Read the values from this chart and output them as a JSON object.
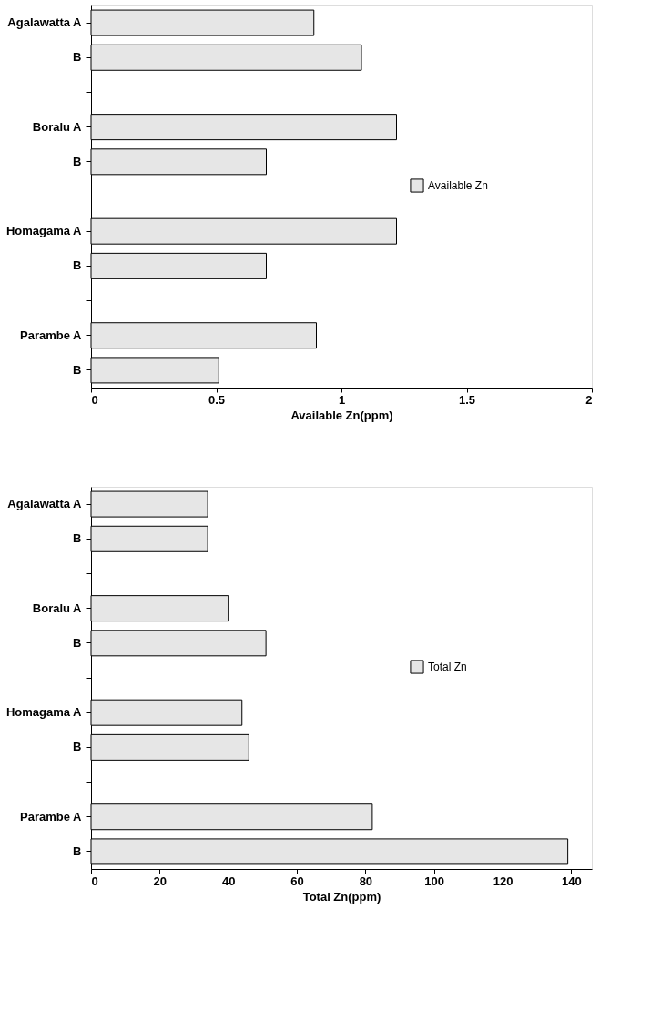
{
  "chart_data": [
    {
      "type": "bar",
      "orientation": "horizontal",
      "xlabel": "Available Zn(ppm)",
      "categories": [
        "Agalawatta A",
        "B",
        null,
        "Boralu A",
        "B",
        null,
        "Homagama A",
        "B",
        null,
        "Parambe A",
        "B"
      ],
      "series": [
        {
          "name": "Available Zn",
          "color": "#e6e6e6",
          "values": [
            0.89,
            1.08,
            null,
            1.22,
            0.7,
            null,
            1.22,
            0.7,
            null,
            0.9,
            0.51
          ]
        }
      ],
      "xlim": [
        0,
        2
      ],
      "xticks": [
        0,
        0.5,
        1,
        1.5,
        2
      ],
      "grid": false,
      "legend": "right"
    },
    {
      "type": "bar",
      "orientation": "horizontal",
      "xlabel": "Total Zn(ppm)",
      "categories": [
        "Agalawatta A",
        "B",
        null,
        "Boralu A",
        "B",
        null,
        "Homagama A",
        "B",
        null,
        "Parambe A",
        "B"
      ],
      "series": [
        {
          "name": "Total Zn",
          "color": "#e6e6e6",
          "values": [
            34,
            34,
            null,
            40,
            51,
            null,
            44,
            46,
            null,
            82,
            139
          ]
        }
      ],
      "xlim": [
        0,
        146
      ],
      "xticks": [
        0,
        20,
        40,
        60,
        80,
        100,
        120,
        140
      ],
      "grid": false,
      "legend": "right"
    }
  ]
}
